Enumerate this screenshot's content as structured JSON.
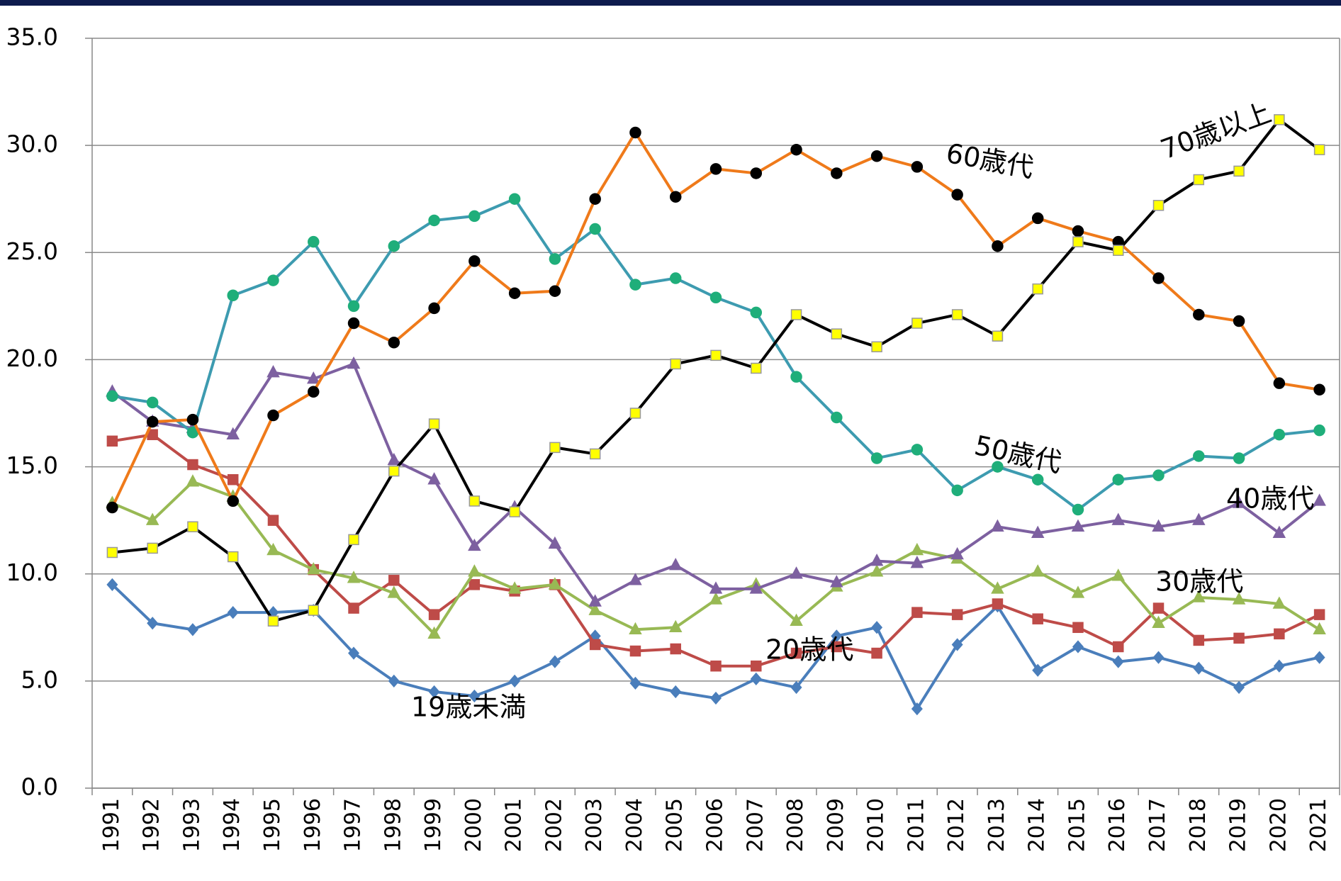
{
  "chart_data": {
    "type": "line",
    "categories": [
      "1991",
      "1992",
      "1993",
      "1994",
      "1995",
      "1996",
      "1997",
      "1998",
      "1999",
      "2000",
      "2001",
      "2002",
      "2003",
      "2004",
      "2005",
      "2006",
      "2007",
      "2008",
      "2009",
      "2010",
      "2011",
      "2012",
      "2013",
      "2014",
      "2015",
      "2016",
      "2017",
      "2018",
      "2019",
      "2020",
      "2021"
    ],
    "ylim": [
      0,
      35
    ],
    "yticks": [
      {
        "value": 0,
        "label": "0.0"
      },
      {
        "value": 5,
        "label": "5.0"
      },
      {
        "value": 10,
        "label": "10.0"
      },
      {
        "value": 15,
        "label": "15.0"
      },
      {
        "value": 20,
        "label": "20.0"
      },
      {
        "value": 25,
        "label": "25.0"
      },
      {
        "value": 30,
        "label": "30.0"
      },
      {
        "value": 35,
        "label": "35.0"
      }
    ],
    "grid": true,
    "series": [
      {
        "name": "19歳未満",
        "color": "#4a7ebb",
        "marker": "diamond",
        "marker_color": "#4a7ebb",
        "values": [
          9.5,
          7.7,
          7.4,
          8.2,
          8.2,
          8.3,
          6.3,
          5.0,
          4.5,
          4.3,
          5.0,
          5.9,
          7.1,
          4.9,
          4.5,
          4.2,
          5.1,
          4.7,
          7.1,
          7.5,
          3.7,
          6.7,
          8.5,
          5.5,
          6.6,
          5.9,
          6.1,
          5.6,
          4.7,
          5.7,
          6.1
        ]
      },
      {
        "name": "20歳代",
        "color": "#be4b48",
        "marker": "square",
        "marker_color": "#be4b48",
        "values": [
          16.2,
          16.5,
          15.1,
          14.4,
          12.5,
          10.2,
          8.4,
          9.7,
          8.1,
          9.5,
          9.2,
          9.5,
          6.7,
          6.4,
          6.5,
          5.7,
          5.7,
          6.3,
          6.6,
          6.3,
          8.2,
          8.1,
          8.6,
          7.9,
          7.5,
          6.6,
          8.4,
          6.9,
          7.0,
          7.2,
          8.1
        ]
      },
      {
        "name": "30歳代",
        "color": "#98b954",
        "marker": "triangle",
        "marker_color": "#98b954",
        "values": [
          13.3,
          12.5,
          14.3,
          13.6,
          11.1,
          10.2,
          9.8,
          9.1,
          7.2,
          10.1,
          9.3,
          9.5,
          8.3,
          7.4,
          7.5,
          8.8,
          9.5,
          7.8,
          9.4,
          10.1,
          11.1,
          10.7,
          9.3,
          10.1,
          9.1,
          9.9,
          7.7,
          8.9,
          8.8,
          8.6,
          7.4
        ]
      },
      {
        "name": "40歳代",
        "color": "#7d60a0",
        "marker": "triangle",
        "marker_color": "#7d60a0",
        "values": [
          18.5,
          17.1,
          16.8,
          16.5,
          19.4,
          19.1,
          19.8,
          15.3,
          14.4,
          11.3,
          13.1,
          11.4,
          8.7,
          9.7,
          10.4,
          9.3,
          9.3,
          10.0,
          9.6,
          10.6,
          10.5,
          10.9,
          12.2,
          11.9,
          12.2,
          12.5,
          12.2,
          12.5,
          13.3,
          11.9,
          13.4
        ]
      },
      {
        "name": "50歳代",
        "color": "#3d9bb0",
        "marker": "circle",
        "marker_color": "#1fae7a",
        "values": [
          18.3,
          18.0,
          16.6,
          23.0,
          23.7,
          25.5,
          22.5,
          25.3,
          26.5,
          26.7,
          27.5,
          24.7,
          26.1,
          23.5,
          23.8,
          22.9,
          22.2,
          19.2,
          17.3,
          15.4,
          15.8,
          13.9,
          15.0,
          14.4,
          13.0,
          14.4,
          14.6,
          15.5,
          15.4,
          16.5,
          16.7
        ]
      },
      {
        "name": "60歳代",
        "color": "#ef7a1a",
        "marker": "circle",
        "marker_color": "#000000",
        "values": [
          13.1,
          17.1,
          17.2,
          13.4,
          17.4,
          18.5,
          21.7,
          20.8,
          22.4,
          24.6,
          23.1,
          23.2,
          27.5,
          30.6,
          27.6,
          28.9,
          28.7,
          29.8,
          28.7,
          29.5,
          29.0,
          27.7,
          25.3,
          26.6,
          26.0,
          25.5,
          23.8,
          22.1,
          21.8,
          18.9,
          18.6
        ]
      },
      {
        "name": "70歳以上",
        "color": "#000000",
        "marker": "square",
        "marker_color": "#ffff00",
        "values": [
          11.0,
          11.2,
          12.2,
          10.8,
          7.8,
          8.3,
          11.6,
          14.8,
          17.0,
          13.4,
          12.9,
          15.9,
          15.6,
          17.5,
          19.8,
          20.2,
          19.6,
          22.1,
          21.2,
          20.6,
          21.7,
          22.1,
          21.1,
          23.3,
          25.5,
          25.1,
          27.2,
          28.4,
          28.8,
          31.2,
          29.8
        ]
      }
    ]
  }
}
